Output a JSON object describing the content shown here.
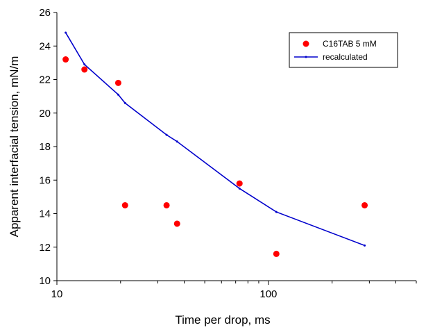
{
  "chart_data": {
    "type": "scatter",
    "xlabel": "Time per drop, ms",
    "ylabel": "Apparent interfacial tension, mN/m",
    "x_scale": "log",
    "xlim": [
      10,
      500
    ],
    "ylim": [
      10,
      26
    ],
    "x_ticks": [
      {
        "value": 10,
        "label": "10"
      },
      {
        "value": 100,
        "label": "100"
      }
    ],
    "y_ticks": [
      {
        "value": 10,
        "label": "10"
      },
      {
        "value": 12,
        "label": "12"
      },
      {
        "value": 14,
        "label": "14"
      },
      {
        "value": 16,
        "label": "16"
      },
      {
        "value": 18,
        "label": "18"
      },
      {
        "value": 20,
        "label": "20"
      },
      {
        "value": 22,
        "label": "22"
      },
      {
        "value": 24,
        "label": "24"
      },
      {
        "value": 26,
        "label": "26"
      }
    ],
    "grid": false,
    "legend_position": "top-right",
    "series": [
      {
        "name": "C16TAB 5 mM",
        "kind": "scatter",
        "color": "#ff0000",
        "x": [
          11,
          13.5,
          19.5,
          21,
          33,
          37,
          73,
          109,
          285
        ],
        "y": [
          23.2,
          22.6,
          21.8,
          14.5,
          14.5,
          13.4,
          15.8,
          11.6,
          14.5
        ]
      },
      {
        "name": "recalculated",
        "kind": "line",
        "color": "#0000cc",
        "x": [
          11,
          13.5,
          19.5,
          21,
          33,
          37,
          73,
          109,
          285
        ],
        "y": [
          24.8,
          22.9,
          21.1,
          20.6,
          18.7,
          18.3,
          15.5,
          14.1,
          12.1
        ]
      }
    ]
  }
}
